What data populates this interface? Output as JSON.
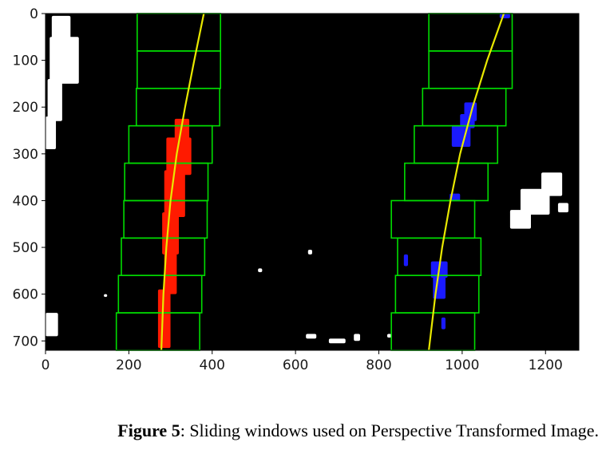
{
  "figure": {
    "caption_label": "Figure 5",
    "caption_text": ": Sliding windows used on Perspective Transformed Image."
  },
  "chart_data": {
    "type": "scatter",
    "title": "",
    "xlabel": "",
    "ylabel": "",
    "xlim": [
      0,
      1280
    ],
    "ylim": [
      720,
      0
    ],
    "y_inverted": true,
    "grid": false,
    "background": "#000000",
    "xticks": [
      0,
      200,
      400,
      600,
      800,
      1000,
      1200
    ],
    "yticks": [
      0,
      100,
      200,
      300,
      400,
      500,
      600,
      700
    ],
    "colors": {
      "windows": "#00dd00",
      "fit": "#e8e800",
      "left_lane_pixels": "#ff1a00",
      "right_lane_pixels": "#1a1aff",
      "other_pixels": "#ffffff"
    },
    "left_windows": [
      {
        "x1": 220,
        "x2": 420,
        "y1": 0,
        "y2": 80
      },
      {
        "x1": 220,
        "x2": 420,
        "y1": 80,
        "y2": 160
      },
      {
        "x1": 218,
        "x2": 418,
        "y1": 160,
        "y2": 240
      },
      {
        "x1": 200,
        "x2": 400,
        "y1": 240,
        "y2": 320
      },
      {
        "x1": 190,
        "x2": 390,
        "y1": 320,
        "y2": 400
      },
      {
        "x1": 188,
        "x2": 388,
        "y1": 400,
        "y2": 480
      },
      {
        "x1": 182,
        "x2": 382,
        "y1": 480,
        "y2": 560
      },
      {
        "x1": 175,
        "x2": 375,
        "y1": 560,
        "y2": 640
      },
      {
        "x1": 170,
        "x2": 370,
        "y1": 640,
        "y2": 720
      }
    ],
    "right_windows": [
      {
        "x1": 920,
        "x2": 1120,
        "y1": 0,
        "y2": 80
      },
      {
        "x1": 920,
        "x2": 1120,
        "y1": 80,
        "y2": 160
      },
      {
        "x1": 905,
        "x2": 1105,
        "y1": 160,
        "y2": 240
      },
      {
        "x1": 885,
        "x2": 1085,
        "y1": 240,
        "y2": 320
      },
      {
        "x1": 862,
        "x2": 1062,
        "y1": 320,
        "y2": 400
      },
      {
        "x1": 830,
        "x2": 1030,
        "y1": 400,
        "y2": 480
      },
      {
        "x1": 845,
        "x2": 1045,
        "y1": 480,
        "y2": 560
      },
      {
        "x1": 840,
        "x2": 1040,
        "y1": 560,
        "y2": 640
      },
      {
        "x1": 830,
        "x2": 1030,
        "y1": 640,
        "y2": 720
      }
    ],
    "left_fit": {
      "y": [
        0,
        100,
        200,
        300,
        400,
        500,
        600,
        720
      ],
      "x": [
        380,
        357,
        335,
        315,
        300,
        290,
        283,
        278
      ]
    },
    "right_fit": {
      "y": [
        0,
        100,
        200,
        300,
        400,
        500,
        600,
        720
      ],
      "x": [
        1100,
        1060,
        1025,
        995,
        972,
        952,
        936,
        920
      ]
    },
    "left_lane_pixels": [
      {
        "x": 310,
        "y": 225,
        "w": 35,
        "h": 45
      },
      {
        "x": 290,
        "y": 265,
        "w": 60,
        "h": 80
      },
      {
        "x": 285,
        "y": 335,
        "w": 50,
        "h": 100
      },
      {
        "x": 280,
        "y": 425,
        "w": 40,
        "h": 90
      },
      {
        "x": 285,
        "y": 505,
        "w": 30,
        "h": 95
      },
      {
        "x": 270,
        "y": 590,
        "w": 30,
        "h": 125
      }
    ],
    "right_lane_pixels": [
      {
        "x": 1090,
        "y": 0,
        "w": 25,
        "h": 10
      },
      {
        "x": 1005,
        "y": 190,
        "w": 30,
        "h": 40
      },
      {
        "x": 995,
        "y": 215,
        "w": 35,
        "h": 30
      },
      {
        "x": 975,
        "y": 240,
        "w": 45,
        "h": 45
      },
      {
        "x": 970,
        "y": 385,
        "w": 25,
        "h": 15
      },
      {
        "x": 860,
        "y": 515,
        "w": 10,
        "h": 25
      },
      {
        "x": 925,
        "y": 530,
        "w": 40,
        "h": 35
      },
      {
        "x": 930,
        "y": 560,
        "w": 30,
        "h": 50
      },
      {
        "x": 950,
        "y": 650,
        "w": 10,
        "h": 25
      }
    ],
    "other_pixels": [
      {
        "x": 15,
        "y": 5,
        "w": 45,
        "h": 50
      },
      {
        "x": 10,
        "y": 50,
        "w": 70,
        "h": 100
      },
      {
        "x": 5,
        "y": 140,
        "w": 35,
        "h": 90
      },
      {
        "x": 0,
        "y": 220,
        "w": 25,
        "h": 70
      },
      {
        "x": 1190,
        "y": 340,
        "w": 50,
        "h": 50
      },
      {
        "x": 1140,
        "y": 375,
        "w": 70,
        "h": 55
      },
      {
        "x": 1115,
        "y": 420,
        "w": 50,
        "h": 40
      },
      {
        "x": 1230,
        "y": 405,
        "w": 25,
        "h": 20
      },
      {
        "x": 0,
        "y": 640,
        "w": 30,
        "h": 50
      },
      {
        "x": 140,
        "y": 600,
        "w": 8,
        "h": 6
      },
      {
        "x": 625,
        "y": 685,
        "w": 25,
        "h": 10
      },
      {
        "x": 680,
        "y": 695,
        "w": 40,
        "h": 10
      },
      {
        "x": 740,
        "y": 685,
        "w": 15,
        "h": 15
      },
      {
        "x": 630,
        "y": 505,
        "w": 10,
        "h": 10
      },
      {
        "x": 510,
        "y": 545,
        "w": 10,
        "h": 8
      },
      {
        "x": 820,
        "y": 685,
        "w": 10,
        "h": 8
      }
    ]
  }
}
